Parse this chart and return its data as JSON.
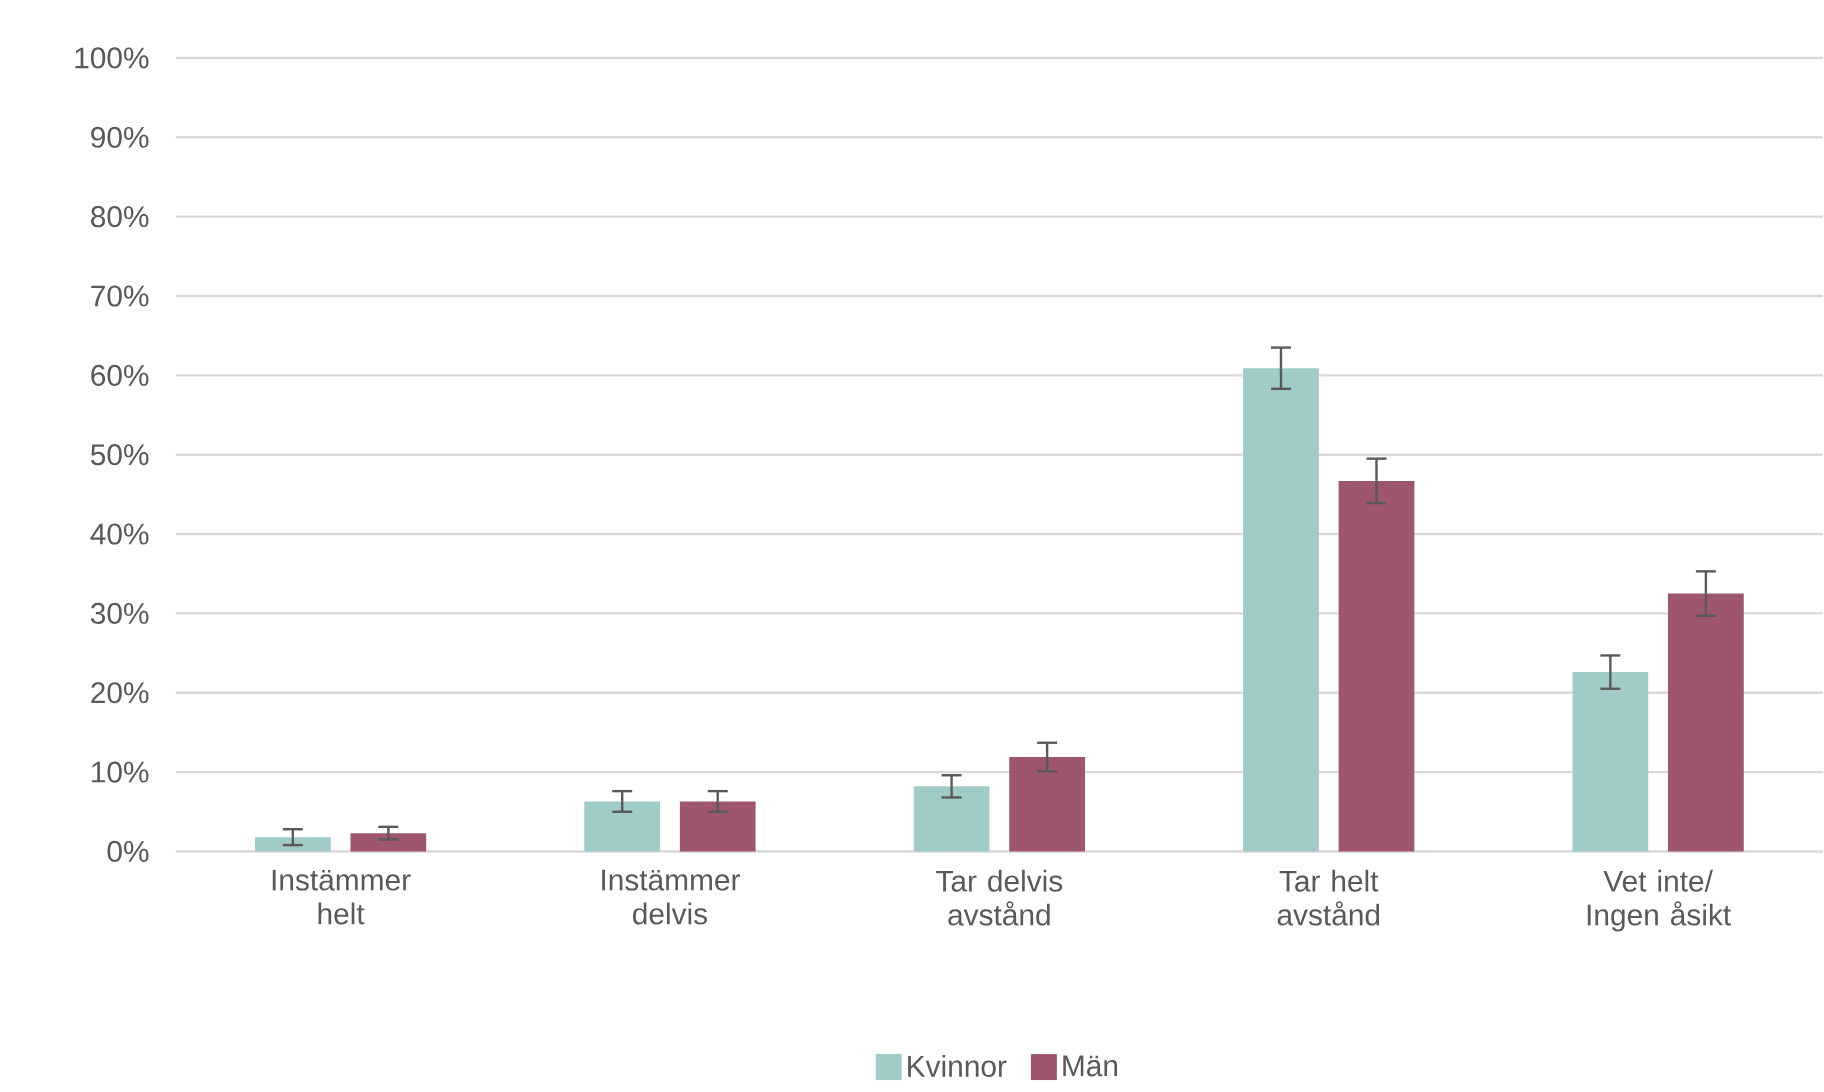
{
  "chart_data": {
    "type": "bar",
    "categories": [
      "Instämmer helt",
      "Instämmer delvis",
      "Tar delvis avstånd",
      "Tar helt avstånd",
      "Vet inte/ Ingen åsikt"
    ],
    "series": [
      {
        "name": "Kvinnor",
        "color": "#a0cbc9",
        "values": [
          1.8,
          6.3,
          8.2,
          60.9,
          22.6
        ],
        "errors": [
          1.0,
          1.3,
          1.4,
          2.6,
          2.1
        ]
      },
      {
        "name": "Män",
        "color": "#9e566e",
        "values": [
          2.3,
          6.3,
          11.9,
          46.7,
          32.5
        ],
        "errors": [
          0.8,
          1.3,
          1.8,
          2.8,
          2.8
        ]
      }
    ],
    "ylim": [
      0,
      100
    ],
    "yticks": [
      {
        "value": 0,
        "label": "0%"
      },
      {
        "value": 10,
        "label": "10%"
      },
      {
        "value": 20,
        "label": "20%"
      },
      {
        "value": 30,
        "label": "30%"
      },
      {
        "value": 40,
        "label": "40%"
      },
      {
        "value": 50,
        "label": "50%"
      },
      {
        "value": 60,
        "label": "60%"
      },
      {
        "value": 70,
        "label": "70%"
      },
      {
        "value": 80,
        "label": "80%"
      },
      {
        "value": 90,
        "label": "90%"
      },
      {
        "value": 100,
        "label": "100%"
      }
    ],
    "grid": "y",
    "legend": "bottom"
  }
}
